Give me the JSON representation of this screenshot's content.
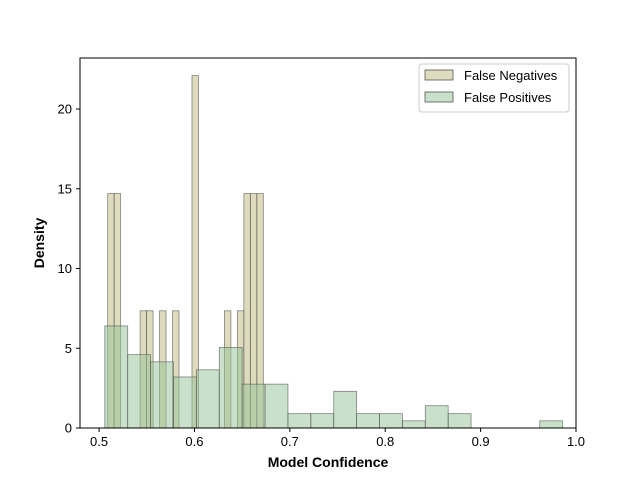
{
  "chart_data": {
    "type": "histogram",
    "xlabel": "Model Confidence",
    "ylabel": "Density",
    "xlim": [
      0.48,
      1.0
    ],
    "ylim": [
      0,
      23.2
    ],
    "xticks": [
      "0.5",
      "0.6",
      "0.7",
      "0.8",
      "0.9",
      "1.0"
    ],
    "yticks": [
      "0",
      "5",
      "10",
      "15",
      "20"
    ],
    "grid": false,
    "legend_position": "top-right",
    "series": [
      {
        "name": "False Negatives",
        "color": "#c8c490",
        "bins": [
          {
            "x0": 0.509,
            "x1": 0.5158,
            "value": 14.7
          },
          {
            "x0": 0.5158,
            "x1": 0.5226,
            "value": 14.7
          },
          {
            "x0": 0.543,
            "x1": 0.5498,
            "value": 7.35
          },
          {
            "x0": 0.5498,
            "x1": 0.5566,
            "value": 7.35
          },
          {
            "x0": 0.5634,
            "x1": 0.5702,
            "value": 7.35
          },
          {
            "x0": 0.577,
            "x1": 0.5838,
            "value": 7.35
          },
          {
            "x0": 0.5974,
            "x1": 0.6042,
            "value": 22.1
          },
          {
            "x0": 0.6314,
            "x1": 0.6382,
            "value": 7.35
          },
          {
            "x0": 0.645,
            "x1": 0.6518,
            "value": 7.35
          },
          {
            "x0": 0.6518,
            "x1": 0.6586,
            "value": 14.7
          },
          {
            "x0": 0.6586,
            "x1": 0.6654,
            "value": 14.7
          },
          {
            "x0": 0.6654,
            "x1": 0.6722,
            "value": 14.7
          }
        ]
      },
      {
        "name": "False Positives",
        "color": "#93c196",
        "bins": [
          {
            "x0": 0.506,
            "x1": 0.53,
            "value": 6.4
          },
          {
            "x0": 0.53,
            "x1": 0.554,
            "value": 4.6
          },
          {
            "x0": 0.554,
            "x1": 0.578,
            "value": 4.15
          },
          {
            "x0": 0.578,
            "x1": 0.602,
            "value": 3.2
          },
          {
            "x0": 0.602,
            "x1": 0.626,
            "value": 3.65
          },
          {
            "x0": 0.626,
            "x1": 0.65,
            "value": 5.05
          },
          {
            "x0": 0.65,
            "x1": 0.674,
            "value": 2.75
          },
          {
            "x0": 0.674,
            "x1": 0.698,
            "value": 2.75
          },
          {
            "x0": 0.698,
            "x1": 0.722,
            "value": 0.9
          },
          {
            "x0": 0.722,
            "x1": 0.746,
            "value": 0.9
          },
          {
            "x0": 0.746,
            "x1": 0.77,
            "value": 2.3
          },
          {
            "x0": 0.77,
            "x1": 0.794,
            "value": 0.9
          },
          {
            "x0": 0.794,
            "x1": 0.818,
            "value": 0.9
          },
          {
            "x0": 0.818,
            "x1": 0.842,
            "value": 0.45
          },
          {
            "x0": 0.842,
            "x1": 0.866,
            "value": 1.4
          },
          {
            "x0": 0.866,
            "x1": 0.89,
            "value": 0.9
          },
          {
            "x0": 0.89,
            "x1": 0.914,
            "value": 0.0
          },
          {
            "x0": 0.914,
            "x1": 0.938,
            "value": 0.0
          },
          {
            "x0": 0.938,
            "x1": 0.962,
            "value": 0.0
          },
          {
            "x0": 0.962,
            "x1": 0.986,
            "value": 0.45
          }
        ]
      }
    ]
  }
}
